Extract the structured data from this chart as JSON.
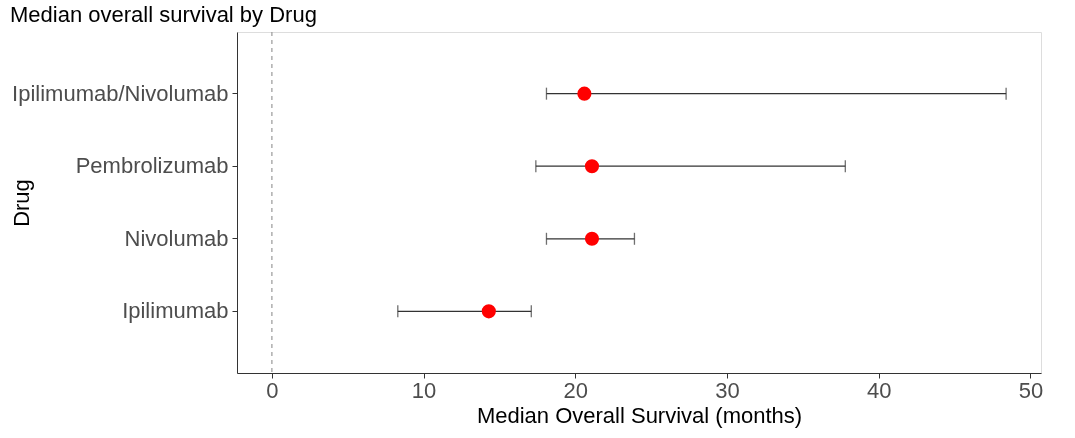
{
  "chart_data": {
    "type": "scatter",
    "title": "Median overall survival by Drug",
    "xlabel": "Median Overall Survival (months)",
    "ylabel": "Drug",
    "categories": [
      "Ipilimumab/Nivolumab",
      "Pembrolizumab",
      "Nivolumab",
      "Ipilimumab"
    ],
    "series": [
      {
        "color": "#ff0000",
        "values": [
          20.6,
          21.1,
          21.1,
          14.3
        ],
        "errors": [
          [
            18.1,
            48.4
          ],
          [
            17.4,
            37.8
          ],
          [
            18.1,
            23.9
          ],
          [
            8.3,
            17.1
          ]
        ]
      }
    ],
    "orientation": "horizontal",
    "legend": false,
    "xlim": [
      -2.3,
      50.7
    ],
    "xticks": [
      0,
      10,
      20,
      30,
      40,
      50
    ],
    "grid": false,
    "marker": "circle",
    "ref_lines": [
      {
        "axis": "x",
        "value": 0,
        "color": "#999999",
        "line_style": "dashed"
      }
    ]
  }
}
